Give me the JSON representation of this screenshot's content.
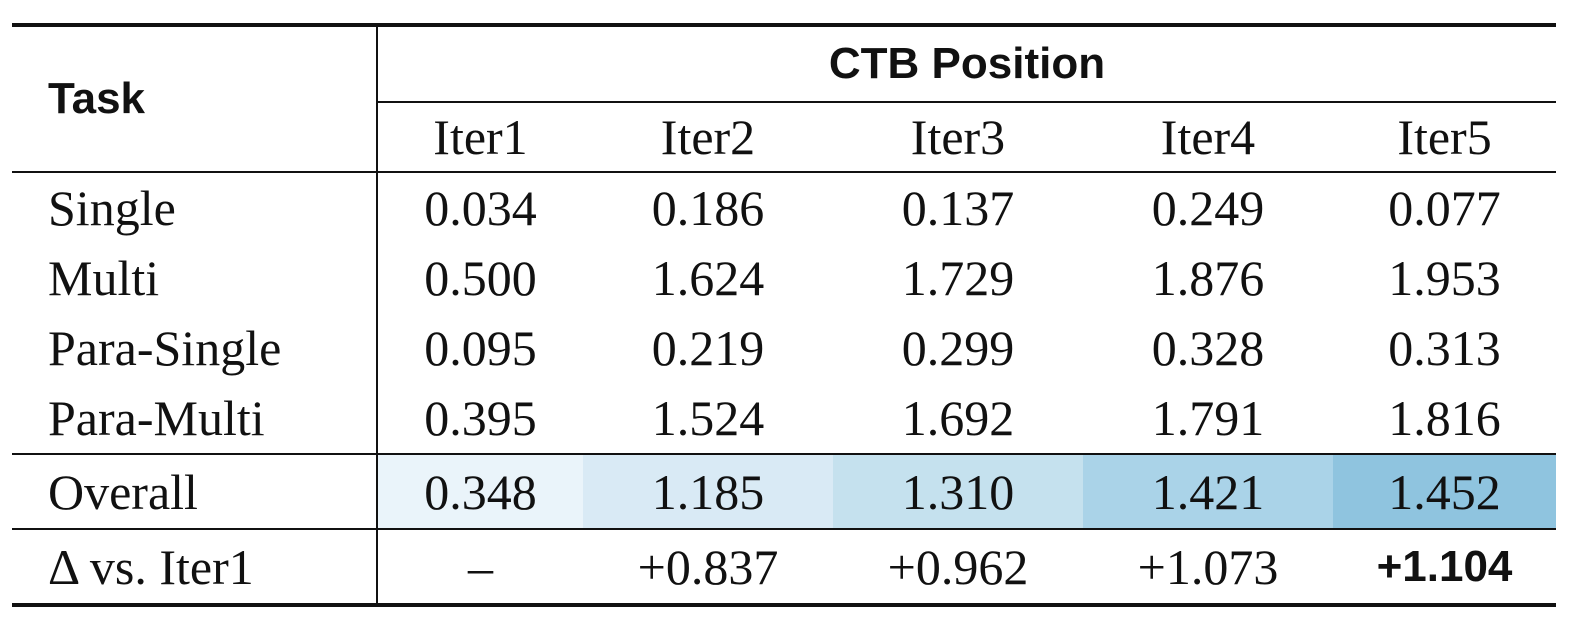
{
  "header": {
    "task": "Task",
    "group": "CTB Position",
    "columns": [
      "Iter1",
      "Iter2",
      "Iter3",
      "Iter4",
      "Iter5"
    ]
  },
  "table": {
    "rows": [
      {
        "label": "Single",
        "cells": [
          "0.034",
          "0.186",
          "0.137",
          "0.249",
          "0.077"
        ]
      },
      {
        "label": "Multi",
        "cells": [
          "0.500",
          "1.624",
          "1.729",
          "1.876",
          "1.953"
        ]
      },
      {
        "label": "Para-Single",
        "cells": [
          "0.095",
          "0.219",
          "0.299",
          "0.328",
          "0.313"
        ]
      },
      {
        "label": "Para-Multi",
        "cells": [
          "0.395",
          "1.524",
          "1.692",
          "1.791",
          "1.816"
        ]
      }
    ],
    "overall": {
      "label": "Overall",
      "cells": [
        "0.348",
        "1.185",
        "1.310",
        "1.421",
        "1.452"
      ]
    },
    "delta": {
      "label": "Δ vs. Iter1",
      "cells": [
        "–",
        "+0.837",
        "+0.962",
        "+1.073",
        "+1.104"
      ]
    }
  }
}
